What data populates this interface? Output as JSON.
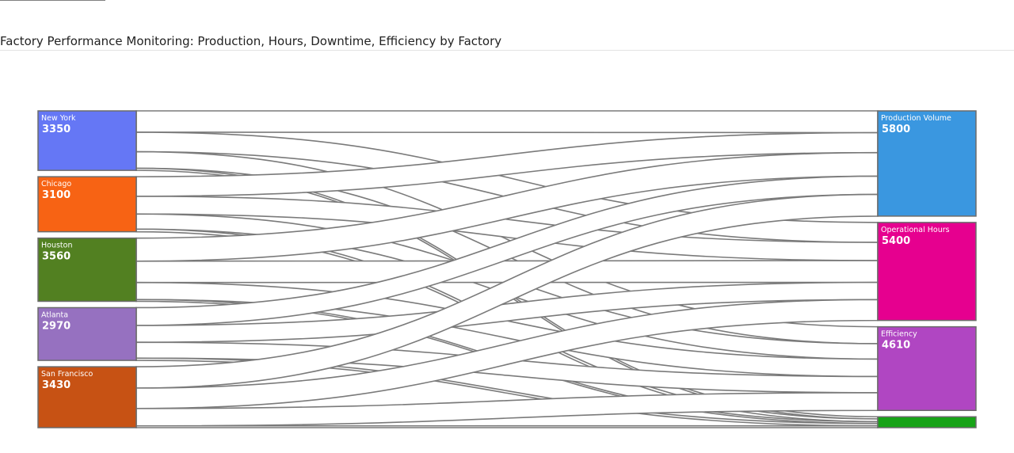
{
  "title": "Factory Performance Monitoring: Production, Hours, Downtime, Efficiency by Factory",
  "chart_data": {
    "type": "sankey",
    "sources": [
      {
        "id": "new-york",
        "name": "New York",
        "value": 3350,
        "color": "#6577f5"
      },
      {
        "id": "chicago",
        "name": "Chicago",
        "value": 3100,
        "color": "#f76314"
      },
      {
        "id": "houston",
        "name": "Houston",
        "value": 3560,
        "color": "#528021"
      },
      {
        "id": "atlanta",
        "name": "Atlanta",
        "value": 2970,
        "color": "#9671c0"
      },
      {
        "id": "san-francisco",
        "name": "San Francisco",
        "value": 3430,
        "color": "#c75214"
      }
    ],
    "targets": [
      {
        "id": "production-volume",
        "name": "Production Volume",
        "value": 5800,
        "color": "#3a97e0"
      },
      {
        "id": "operational-hours",
        "name": "Operational Hours",
        "value": 5400,
        "color": "#e6008f"
      },
      {
        "id": "efficiency",
        "name": "Efficiency",
        "value": 4610,
        "color": "#b046c2"
      },
      {
        "id": "downtime",
        "name": "",
        "value": 600,
        "color": "#17a317"
      }
    ],
    "links": [
      {
        "source": "new-york",
        "target": "production-volume",
        "value": 1200
      },
      {
        "source": "new-york",
        "target": "operational-hours",
        "value": 1100
      },
      {
        "source": "new-york",
        "target": "efficiency",
        "value": 930
      },
      {
        "source": "new-york",
        "target": "downtime",
        "value": 120
      },
      {
        "source": "chicago",
        "target": "production-volume",
        "value": 1100
      },
      {
        "source": "chicago",
        "target": "operational-hours",
        "value": 1000
      },
      {
        "source": "chicago",
        "target": "efficiency",
        "value": 850
      },
      {
        "source": "chicago",
        "target": "downtime",
        "value": 150
      },
      {
        "source": "houston",
        "target": "production-volume",
        "value": 1300
      },
      {
        "source": "houston",
        "target": "operational-hours",
        "value": 1200
      },
      {
        "source": "houston",
        "target": "efficiency",
        "value": 960
      },
      {
        "source": "houston",
        "target": "downtime",
        "value": 100
      },
      {
        "source": "atlanta",
        "target": "production-volume",
        "value": 1000
      },
      {
        "source": "atlanta",
        "target": "operational-hours",
        "value": 950
      },
      {
        "source": "atlanta",
        "target": "efficiency",
        "value": 890
      },
      {
        "source": "atlanta",
        "target": "downtime",
        "value": 130
      },
      {
        "source": "san-francisco",
        "target": "production-volume",
        "value": 1200
      },
      {
        "source": "san-francisco",
        "target": "operational-hours",
        "value": 1150
      },
      {
        "source": "san-francisco",
        "target": "efficiency",
        "value": 980
      },
      {
        "source": "san-francisco",
        "target": "downtime",
        "value": 100
      }
    ]
  }
}
